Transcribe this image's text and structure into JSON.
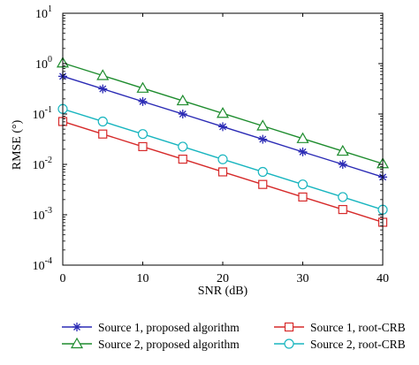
{
  "chart_data": {
    "type": "line",
    "xlabel": "SNR (dB)",
    "ylabel": "RMSE (°)",
    "xlim": [
      0,
      40
    ],
    "ylim_exp": [
      -4,
      1
    ],
    "yscale": "log",
    "x_ticks": [
      "0",
      "10",
      "20",
      "30",
      "40"
    ],
    "y_ticks": [
      {
        "base": "10",
        "exp": "-4"
      },
      {
        "base": "10",
        "exp": "-3"
      },
      {
        "base": "10",
        "exp": "-2"
      },
      {
        "base": "10",
        "exp": "-1"
      },
      {
        "base": "10",
        "exp": "0"
      },
      {
        "base": "10",
        "exp": "1"
      }
    ],
    "grid": false,
    "legend_position": "bottom",
    "x": [
      0,
      5,
      10,
      15,
      20,
      25,
      30,
      35,
      40
    ],
    "series": [
      {
        "name": "Source 1, proposed algorithm",
        "marker": "asterisk",
        "color": "#2b2bb5",
        "values": [
          0.56,
          0.315,
          0.177,
          0.1,
          0.056,
          0.0315,
          0.0177,
          0.01,
          0.0056
        ]
      },
      {
        "name": "Source 2, proposed algorithm",
        "marker": "triangle",
        "color": "#1e8c2e",
        "values": [
          1.03,
          0.58,
          0.325,
          0.183,
          0.103,
          0.058,
          0.0325,
          0.0183,
          0.0103
        ]
      },
      {
        "name": "Source 1, root-CRB",
        "marker": "square",
        "color": "#d62a2a",
        "values": [
          0.071,
          0.04,
          0.0225,
          0.0127,
          0.0071,
          0.004,
          0.00225,
          0.00127,
          0.00071
        ]
      },
      {
        "name": "Source 2, root-CRB",
        "marker": "circle",
        "color": "#18b5bf",
        "values": [
          0.126,
          0.071,
          0.04,
          0.0225,
          0.0126,
          0.0071,
          0.004,
          0.00225,
          0.00126
        ]
      }
    ]
  }
}
